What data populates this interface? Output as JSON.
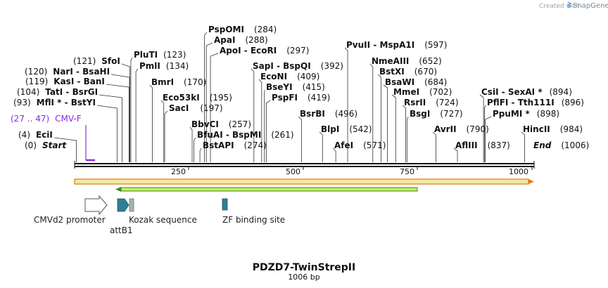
{
  "credit": {
    "prefix": "Created with",
    "brand": "SnapGene"
  },
  "sequence": {
    "name": "PDZD7-TwinStrepII",
    "length_label": "1006 bp",
    "length": 1006
  },
  "ruler": {
    "ticks": [
      250,
      500,
      750,
      1000
    ]
  },
  "sites": [
    {
      "name": "Start",
      "pos": "(0)",
      "bp": 0,
      "italic": true
    },
    {
      "name": "EciI",
      "pos": "(4)",
      "bp": 4
    },
    {
      "name": "MflI *",
      "pos": "(93)",
      "bp": 93,
      "partner": "BstYI"
    },
    {
      "name": "TatI",
      "pos": "(104)",
      "bp": 104,
      "partner": "BsrGI"
    },
    {
      "name": "KasI",
      "pos": "(119)",
      "bp": 119,
      "partner": "BanI"
    },
    {
      "name": "NarI",
      "pos": "(120)",
      "bp": 120,
      "partner": "BsaHI"
    },
    {
      "name": "SfoI",
      "pos": "(121)",
      "bp": 121
    },
    {
      "name": "PluTI",
      "pos": "(123)",
      "bp": 123
    },
    {
      "name": "PmlI",
      "pos": "(134)",
      "bp": 134
    },
    {
      "name": "BmrI",
      "pos": "(170)",
      "bp": 170
    },
    {
      "name": "Eco53kI",
      "pos": "(195)",
      "bp": 195
    },
    {
      "name": "SacI",
      "pos": "(197)",
      "bp": 197
    },
    {
      "name": "BbvCI",
      "pos": "(257)",
      "bp": 257
    },
    {
      "name": "BfuAI",
      "pos": "(261)",
      "bp": 261,
      "partner": "BspMI"
    },
    {
      "name": "BstAPI",
      "pos": "(274)",
      "bp": 274
    },
    {
      "name": "PspOMI",
      "pos": "(284)",
      "bp": 284
    },
    {
      "name": "ApaI",
      "pos": "(288)",
      "bp": 288
    },
    {
      "name": "ApoI",
      "pos": "(297)",
      "bp": 297,
      "partner": "EcoRI"
    },
    {
      "name": "SapI",
      "pos": "(392)",
      "bp": 392,
      "partner": "BspQI"
    },
    {
      "name": "EcoNI",
      "pos": "(409)",
      "bp": 409
    },
    {
      "name": "BseYI",
      "pos": "(415)",
      "bp": 415
    },
    {
      "name": "PspFI",
      "pos": "(419)",
      "bp": 419
    },
    {
      "name": "BsrBI",
      "pos": "(496)",
      "bp": 496
    },
    {
      "name": "BlpI",
      "pos": "(542)",
      "bp": 542
    },
    {
      "name": "AfeI",
      "pos": "(571)",
      "bp": 571
    },
    {
      "name": "PvuII",
      "pos": "(597)",
      "bp": 597,
      "partner": "MspA1I"
    },
    {
      "name": "NmeAIII",
      "pos": "(652)",
      "bp": 652
    },
    {
      "name": "BstXI",
      "pos": "(670)",
      "bp": 670
    },
    {
      "name": "BsaWI",
      "pos": "(684)",
      "bp": 684
    },
    {
      "name": "MmeI",
      "pos": "(702)",
      "bp": 702
    },
    {
      "name": "RsrII",
      "pos": "(724)",
      "bp": 724
    },
    {
      "name": "BsgI",
      "pos": "(727)",
      "bp": 727
    },
    {
      "name": "AvrII",
      "pos": "(790)",
      "bp": 790
    },
    {
      "name": "AflIII",
      "pos": "(837)",
      "bp": 837
    },
    {
      "name": "CsiI",
      "pos": "(894)",
      "bp": 894,
      "partner": "SexAI *"
    },
    {
      "name": "PflFI",
      "pos": "(896)",
      "bp": 896,
      "partner": "Tth111I"
    },
    {
      "name": "PpuMI *",
      "pos": "(898)",
      "bp": 898
    },
    {
      "name": "HincII",
      "pos": "(984)",
      "bp": 984
    },
    {
      "name": "End",
      "pos": "(1006)",
      "bp": 1006,
      "italic": true
    }
  ],
  "primer": {
    "name": "CMV-F",
    "range": "(27 .. 47)",
    "start": 27,
    "end": 47,
    "color": "#8a2be2"
  },
  "features": [
    {
      "name": "CMVd2 promoter",
      "color": "#ffffff"
    },
    {
      "name": "attB1",
      "color": "#2e7f94"
    },
    {
      "name": "Kozak sequence",
      "color": "#a9b0b5"
    },
    {
      "name": "ZF binding site",
      "color": "#2e7f94"
    }
  ],
  "colors": {
    "orf_fill": "#f5e6a0",
    "orf_edge": "#e07a10",
    "cds_fill": "#c6ee6c",
    "cds_edge": "#3a8a20"
  }
}
